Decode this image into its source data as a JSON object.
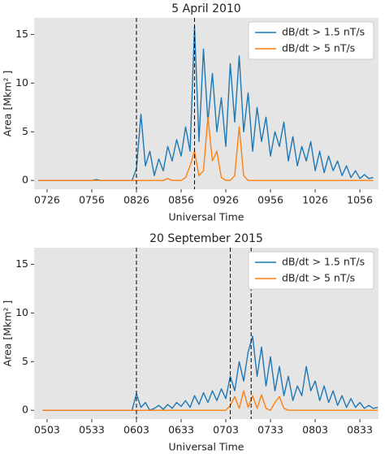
{
  "chart_data": [
    {
      "type": "line",
      "title": "5 April 2010",
      "xlabel": "Universal Time",
      "ylabel": "Area [Mkm² ]",
      "x": [
        440,
        443,
        446,
        449,
        452,
        455,
        458,
        461,
        464,
        467,
        470,
        473,
        476,
        479,
        482,
        485,
        488,
        491,
        494,
        497,
        500,
        503,
        506,
        509,
        512,
        515,
        518,
        521,
        524,
        527,
        530,
        533,
        536,
        539,
        542,
        545,
        548,
        551,
        554,
        557,
        560,
        563,
        566,
        569,
        572,
        575,
        578,
        581,
        584,
        587,
        590,
        593,
        596,
        599,
        602,
        605,
        608,
        611,
        614,
        617,
        620,
        623,
        626,
        629,
        632,
        635,
        638,
        641,
        644,
        647,
        650,
        653,
        656,
        659,
        662,
        665
      ],
      "series": [
        {
          "name": "dB/dt > 1.5 nT/s",
          "color": "#1f77b4",
          "values": [
            0,
            0,
            0,
            0,
            0,
            0,
            0,
            0,
            0,
            0,
            0,
            0,
            0,
            0.1,
            0,
            0,
            0,
            0,
            0,
            0,
            0,
            0,
            1.2,
            6.8,
            1.5,
            3.0,
            0.5,
            2.2,
            1.0,
            3.5,
            2.0,
            4.2,
            2.5,
            5.5,
            3.0,
            15.8,
            4.0,
            13.5,
            6.0,
            11.0,
            5.0,
            8.5,
            3.5,
            12.0,
            6.0,
            12.8,
            5.0,
            9.0,
            3.0,
            7.5,
            4.0,
            6.5,
            2.5,
            5.0,
            3.5,
            6.0,
            2.0,
            4.5,
            1.5,
            3.5,
            2.0,
            4.0,
            1.0,
            3.0,
            0.8,
            2.5,
            1.0,
            2.0,
            0.5,
            1.5,
            0.3,
            1.0,
            0.2,
            0.6,
            0.2,
            0.3
          ]
        },
        {
          "name": "dB/dt > 5 nT/s",
          "color": "#ff7f0e",
          "values": [
            0,
            0,
            0,
            0,
            0,
            0,
            0,
            0,
            0,
            0,
            0,
            0,
            0,
            0,
            0,
            0,
            0,
            0,
            0,
            0,
            0,
            0,
            0,
            0,
            0,
            0,
            0,
            0,
            0,
            0.2,
            0,
            0,
            0,
            0.3,
            1.5,
            3.0,
            0.5,
            1.0,
            6.5,
            2.0,
            3.0,
            0.3,
            0,
            0,
            0.5,
            5.5,
            0.5,
            0,
            0,
            0,
            0,
            0,
            0,
            0,
            0,
            0,
            0,
            0,
            0,
            0,
            0,
            0,
            0,
            0,
            0,
            0,
            0,
            0,
            0,
            0,
            0,
            0,
            0,
            0,
            0,
            0
          ]
        }
      ],
      "vlines": [
        506,
        545
      ],
      "xlim": [
        437.3,
        668.5
      ],
      "xticks": [
        {
          "value": 446,
          "label": "0726"
        },
        {
          "value": 476,
          "label": "0756"
        },
        {
          "value": 506,
          "label": "0826"
        },
        {
          "value": 536,
          "label": "0856"
        },
        {
          "value": 566,
          "label": "0926"
        },
        {
          "value": 596,
          "label": "0956"
        },
        {
          "value": 626,
          "label": "1026"
        },
        {
          "value": 656,
          "label": "1056"
        }
      ],
      "ylim": [
        -0.9,
        16.7
      ],
      "yticks": [
        0,
        5,
        10,
        15
      ],
      "legend": "upper right",
      "grid": false
    },
    {
      "type": "line",
      "title": "20 September 2015",
      "xlabel": "Universal Time",
      "ylabel": "Area [Mkm² ]",
      "x": [
        300,
        303,
        306,
        309,
        312,
        315,
        318,
        321,
        324,
        327,
        330,
        333,
        336,
        339,
        342,
        345,
        348,
        351,
        354,
        357,
        360,
        363,
        366,
        369,
        372,
        375,
        378,
        381,
        384,
        387,
        390,
        393,
        396,
        399,
        402,
        405,
        408,
        411,
        414,
        417,
        420,
        423,
        426,
        429,
        432,
        435,
        438,
        441,
        444,
        447,
        450,
        453,
        456,
        459,
        462,
        465,
        468,
        471,
        474,
        477,
        480,
        483,
        486,
        489,
        492,
        495,
        498,
        501,
        504,
        507,
        510,
        513,
        516,
        519,
        522,
        525
      ],
      "series": [
        {
          "name": "dB/dt > 1.5 nT/s",
          "color": "#1f77b4",
          "values": [
            0,
            0,
            0,
            0,
            0,
            0,
            0,
            0,
            0,
            0,
            0,
            0,
            0,
            0,
            0,
            0,
            0,
            0,
            0,
            0,
            0,
            1.7,
            0.3,
            0.8,
            0,
            0.2,
            0.5,
            0.1,
            0.6,
            0.2,
            0.8,
            0.4,
            1.0,
            0.3,
            1.5,
            0.6,
            1.8,
            0.8,
            2.0,
            1.0,
            2.2,
            1.2,
            3.5,
            2.0,
            5.0,
            3.0,
            6.0,
            7.6,
            3.5,
            6.5,
            2.5,
            5.5,
            2.0,
            4.5,
            1.5,
            3.5,
            1.0,
            2.5,
            1.5,
            4.5,
            2.0,
            3.0,
            1.0,
            2.5,
            0.8,
            2.0,
            0.5,
            1.5,
            0.3,
            1.2,
            0.3,
            0.8,
            0.2,
            0.5,
            0.2,
            0.3
          ]
        },
        {
          "name": "dB/dt > 5 nT/s",
          "color": "#ff7f0e",
          "values": [
            0,
            0,
            0,
            0,
            0,
            0,
            0,
            0,
            0,
            0,
            0,
            0,
            0,
            0,
            0,
            0,
            0,
            0,
            0,
            0,
            0,
            0,
            0,
            0,
            0,
            0,
            0,
            0,
            0,
            0,
            0,
            0,
            0,
            0,
            0,
            0,
            0,
            0,
            0,
            0,
            0,
            0,
            0.5,
            1.4,
            0.2,
            2.0,
            0.3,
            1.5,
            0.2,
            1.6,
            0.2,
            0,
            0.8,
            1.4,
            0.2,
            0,
            0,
            0,
            0,
            0,
            0,
            0,
            0,
            0,
            0,
            0,
            0,
            0,
            0,
            0,
            0,
            0,
            0,
            0,
            0,
            0
          ]
        }
      ],
      "vlines": [
        363,
        426,
        440
      ],
      "xlim": [
        294.3,
        525.5
      ],
      "xticks": [
        {
          "value": 303,
          "label": "0503"
        },
        {
          "value": 333,
          "label": "0533"
        },
        {
          "value": 363,
          "label": "0603"
        },
        {
          "value": 393,
          "label": "0633"
        },
        {
          "value": 423,
          "label": "0703"
        },
        {
          "value": 453,
          "label": "0733"
        },
        {
          "value": 483,
          "label": "0803"
        },
        {
          "value": 513,
          "label": "0833"
        }
      ],
      "ylim": [
        -0.9,
        16.7
      ],
      "yticks": [
        0,
        5,
        10,
        15
      ],
      "legend": "upper right",
      "grid": false
    }
  ]
}
